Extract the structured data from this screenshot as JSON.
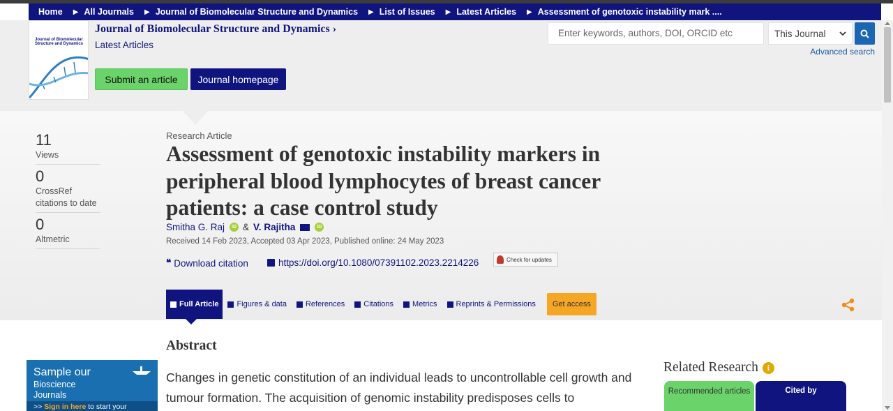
{
  "breadcrumb": {
    "items": [
      "Home",
      "All Journals",
      "Journal of Biomolecular Structure and Dynamics",
      "List of Issues",
      "Latest Articles",
      "Assessment of genotoxic instability mark ...."
    ]
  },
  "journal": {
    "cover_title_line1": "Journal of Biomolecular",
    "cover_title_line2": "Structure and Dynamics",
    "title": "Journal of Biomolecular Structure and Dynamics",
    "title_chevron": "›",
    "subtitle": "Latest Articles",
    "submit_label": "Submit an article",
    "homepage_label": "Journal homepage"
  },
  "search": {
    "placeholder": "Enter keywords, authors, DOI, ORCID etc",
    "scope": "This Journal",
    "advanced": "Advanced search"
  },
  "metrics": [
    {
      "value": "11",
      "label": "Views"
    },
    {
      "value": "0",
      "label": "CrossRef citations to date"
    },
    {
      "value": "0",
      "label": "Altmetric"
    }
  ],
  "article": {
    "type": "Research Article",
    "title": "Assessment of genotoxic instability markers in peripheral blood lymphocytes of breast cancer patients: a case control study",
    "author1": "Smitha G. Raj",
    "and": "&",
    "author2": "V. Rajitha",
    "orcid_badge": "iD",
    "dates": "Received 14 Feb 2023, Accepted 03 Apr 2023, Published online: 24 May 2023",
    "download_citation": "Download citation",
    "doi": "https://doi.org/10.1080/07391102.2023.2214226",
    "check_updates": "Check for updates"
  },
  "tabs": {
    "full_article": "Full Article",
    "figures": "Figures & data",
    "references": "References",
    "citations": "Citations",
    "metrics": "Metrics",
    "reprints": "Reprints & Permissions",
    "get_access": "Get access"
  },
  "abstract": {
    "heading": "Abstract",
    "text": "Changes in genetic constitution of an individual leads to uncontrollable cell growth and tumour formation. The acquisition of genomic instability predisposes cells to"
  },
  "sample": {
    "line1": "Sample our",
    "line2": "Bioscience",
    "line3": "Journals",
    "prefix": ">>",
    "link": "Sign in here",
    "suffix": "to start your access"
  },
  "related": {
    "heading": "Related Research",
    "info": "i",
    "tab_recommended": "Recommended articles",
    "tab_cited": "Cited by"
  },
  "colors": {
    "brand_navy": "#10147e",
    "green": "#6ad36a",
    "orange": "#f5a623"
  }
}
